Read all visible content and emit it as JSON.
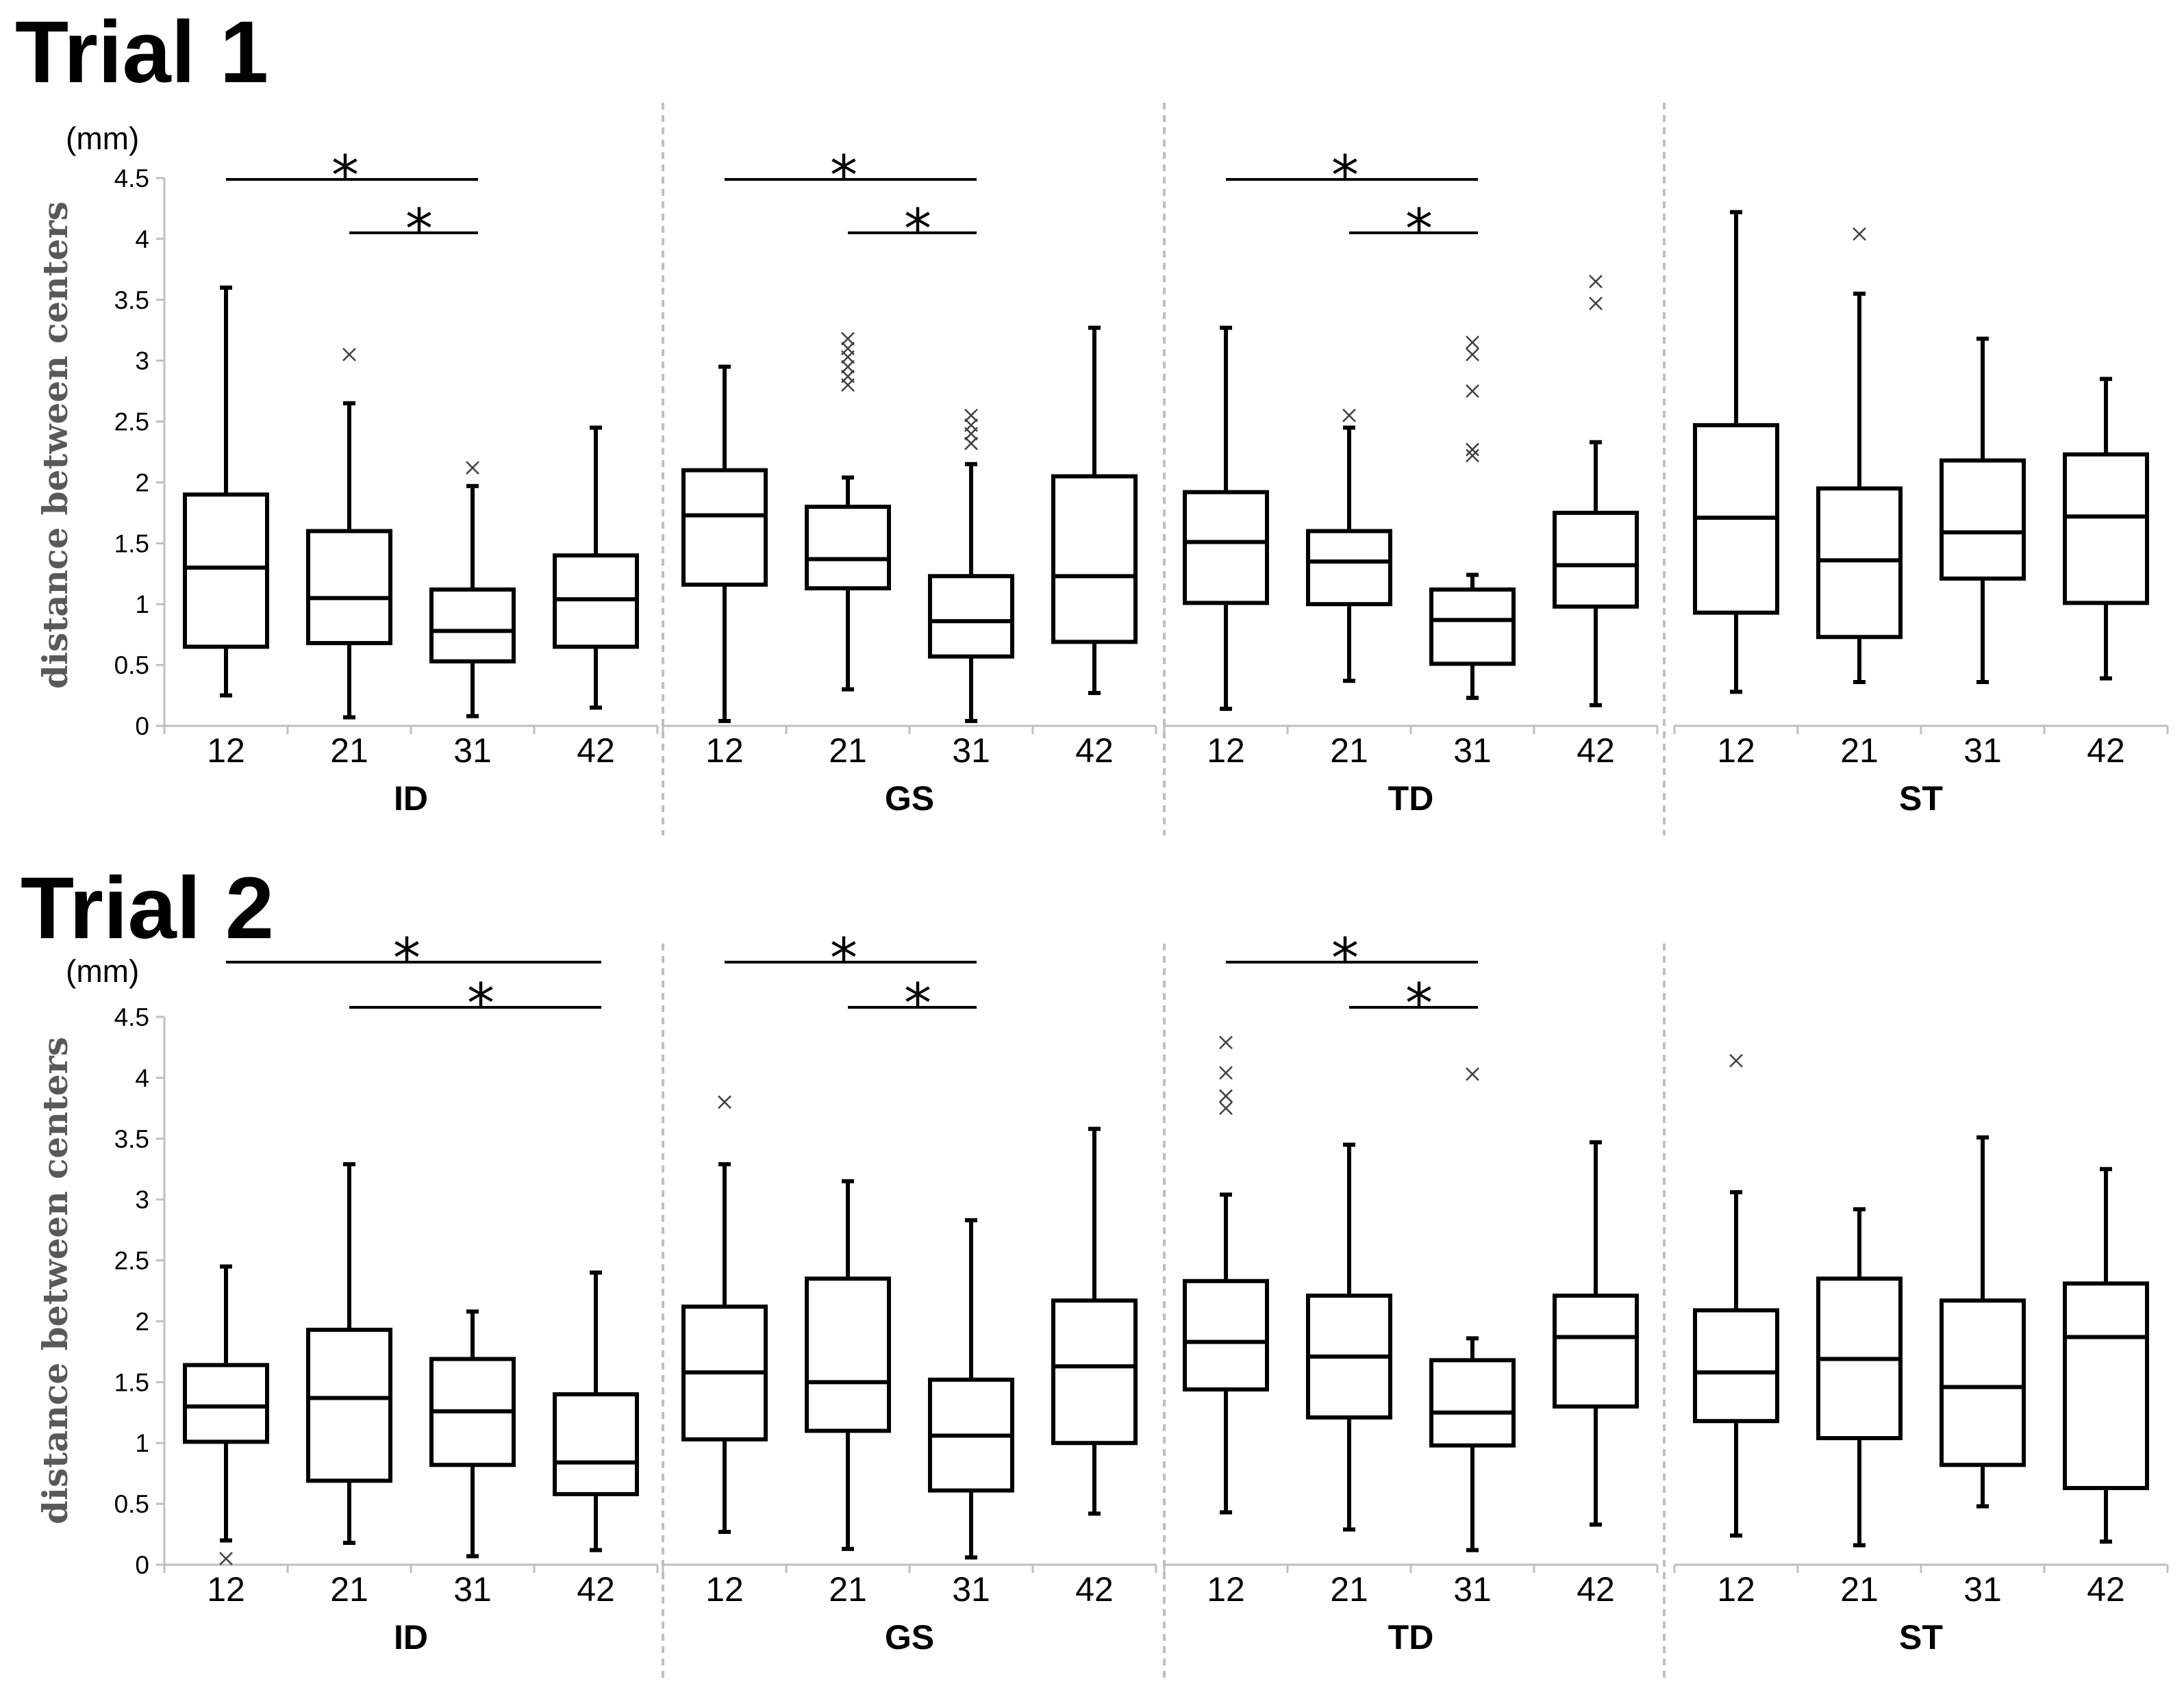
{
  "chart_data": {
    "type": "boxplot",
    "unit_label": "(mm)",
    "ylabel": "distance between centers",
    "ylim": [
      0,
      4.5
    ],
    "yticks": [
      "0",
      "0.5",
      "1",
      "1.5",
      "2",
      "2.5",
      "3",
      "3.5",
      "4",
      "4.5"
    ],
    "categories": [
      "12",
      "21",
      "31",
      "42"
    ],
    "trials": [
      {
        "title": "Trial 1",
        "groups": [
          {
            "name": "ID",
            "boxes": [
              {
                "category": "12",
                "min": 0.25,
                "q1": 0.65,
                "median": 1.3,
                "q3": 1.9,
                "max": 3.6,
                "outliers": []
              },
              {
                "category": "21",
                "min": 0.07,
                "q1": 0.68,
                "median": 1.05,
                "q3": 1.6,
                "max": 2.65,
                "outliers": [
                  3.05
                ]
              },
              {
                "category": "31",
                "min": 0.08,
                "q1": 0.53,
                "median": 0.78,
                "q3": 1.12,
                "max": 1.97,
                "outliers": [
                  2.12
                ]
              },
              {
                "category": "42",
                "min": 0.15,
                "q1": 0.65,
                "median": 1.04,
                "q3": 1.4,
                "max": 2.45,
                "outliers": []
              }
            ],
            "significance": [
              {
                "from": "12",
                "to": "31",
                "label": "*"
              },
              {
                "from": "21",
                "to": "31",
                "label": "*"
              }
            ]
          },
          {
            "name": "GS",
            "boxes": [
              {
                "category": "12",
                "min": 0.04,
                "q1": 1.16,
                "median": 1.73,
                "q3": 2.1,
                "max": 2.95,
                "outliers": []
              },
              {
                "category": "21",
                "min": 0.3,
                "q1": 1.13,
                "median": 1.37,
                "q3": 1.8,
                "max": 2.04,
                "outliers": [
                  2.8,
                  2.87,
                  2.95,
                  3.03,
                  3.1,
                  3.18
                ]
              },
              {
                "category": "31",
                "min": 0.04,
                "q1": 0.57,
                "median": 0.86,
                "q3": 1.23,
                "max": 2.15,
                "outliers": [
                  2.32,
                  2.4,
                  2.47,
                  2.55
                ]
              },
              {
                "category": "42",
                "min": 0.27,
                "q1": 0.69,
                "median": 1.23,
                "q3": 2.05,
                "max": 3.27,
                "outliers": []
              }
            ],
            "significance": [
              {
                "from": "12",
                "to": "31",
                "label": "*"
              },
              {
                "from": "21",
                "to": "31",
                "label": "*"
              }
            ]
          },
          {
            "name": "TD",
            "boxes": [
              {
                "category": "12",
                "min": 0.14,
                "q1": 1.01,
                "median": 1.51,
                "q3": 1.92,
                "max": 3.27,
                "outliers": []
              },
              {
                "category": "21",
                "min": 0.37,
                "q1": 1.0,
                "median": 1.35,
                "q3": 1.6,
                "max": 2.45,
                "outliers": [
                  2.55
                ]
              },
              {
                "category": "31",
                "min": 0.23,
                "q1": 0.51,
                "median": 0.87,
                "q3": 1.12,
                "max": 1.24,
                "outliers": [
                  2.22,
                  2.27,
                  2.75,
                  3.05,
                  3.15
                ]
              },
              {
                "category": "42",
                "min": 0.17,
                "q1": 0.98,
                "median": 1.32,
                "q3": 1.75,
                "max": 2.33,
                "outliers": [
                  3.47,
                  3.65
                ]
              }
            ],
            "significance": [
              {
                "from": "12",
                "to": "31",
                "label": "*"
              },
              {
                "from": "21",
                "to": "31",
                "label": "*"
              }
            ]
          },
          {
            "name": "ST",
            "boxes": [
              {
                "category": "12",
                "min": 0.28,
                "q1": 0.93,
                "median": 1.71,
                "q3": 2.47,
                "max": 4.22,
                "outliers": []
              },
              {
                "category": "21",
                "min": 0.36,
                "q1": 0.73,
                "median": 1.36,
                "q3": 1.95,
                "max": 3.55,
                "outliers": [
                  4.04
                ]
              },
              {
                "category": "31",
                "min": 0.36,
                "q1": 1.21,
                "median": 1.59,
                "q3": 2.18,
                "max": 3.18,
                "outliers": []
              },
              {
                "category": "42",
                "min": 0.39,
                "q1": 1.01,
                "median": 1.72,
                "q3": 2.23,
                "max": 2.85,
                "outliers": []
              }
            ],
            "significance": []
          }
        ]
      },
      {
        "title": "Trial 2",
        "groups": [
          {
            "name": "ID",
            "boxes": [
              {
                "category": "12",
                "min": 0.2,
                "q1": 1.01,
                "median": 1.3,
                "q3": 1.64,
                "max": 2.45,
                "outliers": [
                  0.05
                ]
              },
              {
                "category": "21",
                "min": 0.18,
                "q1": 0.69,
                "median": 1.37,
                "q3": 1.93,
                "max": 3.29,
                "outliers": []
              },
              {
                "category": "31",
                "min": 0.07,
                "q1": 0.82,
                "median": 1.26,
                "q3": 1.69,
                "max": 2.08,
                "outliers": []
              },
              {
                "category": "42",
                "min": 0.12,
                "q1": 0.58,
                "median": 0.84,
                "q3": 1.4,
                "max": 2.4,
                "outliers": []
              }
            ],
            "significance": [
              {
                "from": "12",
                "to": "42",
                "label": "*"
              },
              {
                "from": "21",
                "to": "42",
                "label": "*"
              }
            ]
          },
          {
            "name": "GS",
            "boxes": [
              {
                "category": "12",
                "min": 0.27,
                "q1": 1.03,
                "median": 1.58,
                "q3": 2.12,
                "max": 3.29,
                "outliers": [
                  3.8
                ]
              },
              {
                "category": "21",
                "min": 0.13,
                "q1": 1.1,
                "median": 1.5,
                "q3": 2.35,
                "max": 3.15,
                "outliers": []
              },
              {
                "category": "31",
                "min": 0.06,
                "q1": 0.61,
                "median": 1.06,
                "q3": 1.52,
                "max": 2.83,
                "outliers": []
              },
              {
                "category": "42",
                "min": 0.42,
                "q1": 1.0,
                "median": 1.63,
                "q3": 2.17,
                "max": 3.58,
                "outliers": []
              }
            ],
            "significance": [
              {
                "from": "12",
                "to": "31",
                "label": "*"
              },
              {
                "from": "21",
                "to": "31",
                "label": "*"
              }
            ]
          },
          {
            "name": "TD",
            "boxes": [
              {
                "category": "12",
                "min": 0.43,
                "q1": 1.44,
                "median": 1.83,
                "q3": 2.33,
                "max": 3.04,
                "outliers": [
                  3.75,
                  3.85,
                  4.04,
                  4.29
                ]
              },
              {
                "category": "21",
                "min": 0.29,
                "q1": 1.21,
                "median": 1.71,
                "q3": 2.21,
                "max": 3.45,
                "outliers": []
              },
              {
                "category": "31",
                "min": 0.12,
                "q1": 0.98,
                "median": 1.25,
                "q3": 1.68,
                "max": 1.86,
                "outliers": [
                  4.03
                ]
              },
              {
                "category": "42",
                "min": 0.33,
                "q1": 1.3,
                "median": 1.87,
                "q3": 2.21,
                "max": 3.47,
                "outliers": []
              }
            ],
            "significance": [
              {
                "from": "12",
                "to": "31",
                "label": "*"
              },
              {
                "from": "21",
                "to": "31",
                "label": "*"
              }
            ]
          },
          {
            "name": "ST",
            "boxes": [
              {
                "category": "12",
                "min": 0.24,
                "q1": 1.18,
                "median": 1.58,
                "q3": 2.09,
                "max": 3.06,
                "outliers": [
                  4.14
                ]
              },
              {
                "category": "21",
                "min": 0.16,
                "q1": 1.04,
                "median": 1.69,
                "q3": 2.35,
                "max": 2.92,
                "outliers": []
              },
              {
                "category": "31",
                "min": 0.48,
                "q1": 0.82,
                "median": 1.46,
                "q3": 2.17,
                "max": 3.51,
                "outliers": []
              },
              {
                "category": "42",
                "min": 0.19,
                "q1": 0.63,
                "median": 1.87,
                "q3": 2.31,
                "max": 3.25,
                "outliers": []
              }
            ],
            "significance": []
          }
        ]
      }
    ]
  }
}
